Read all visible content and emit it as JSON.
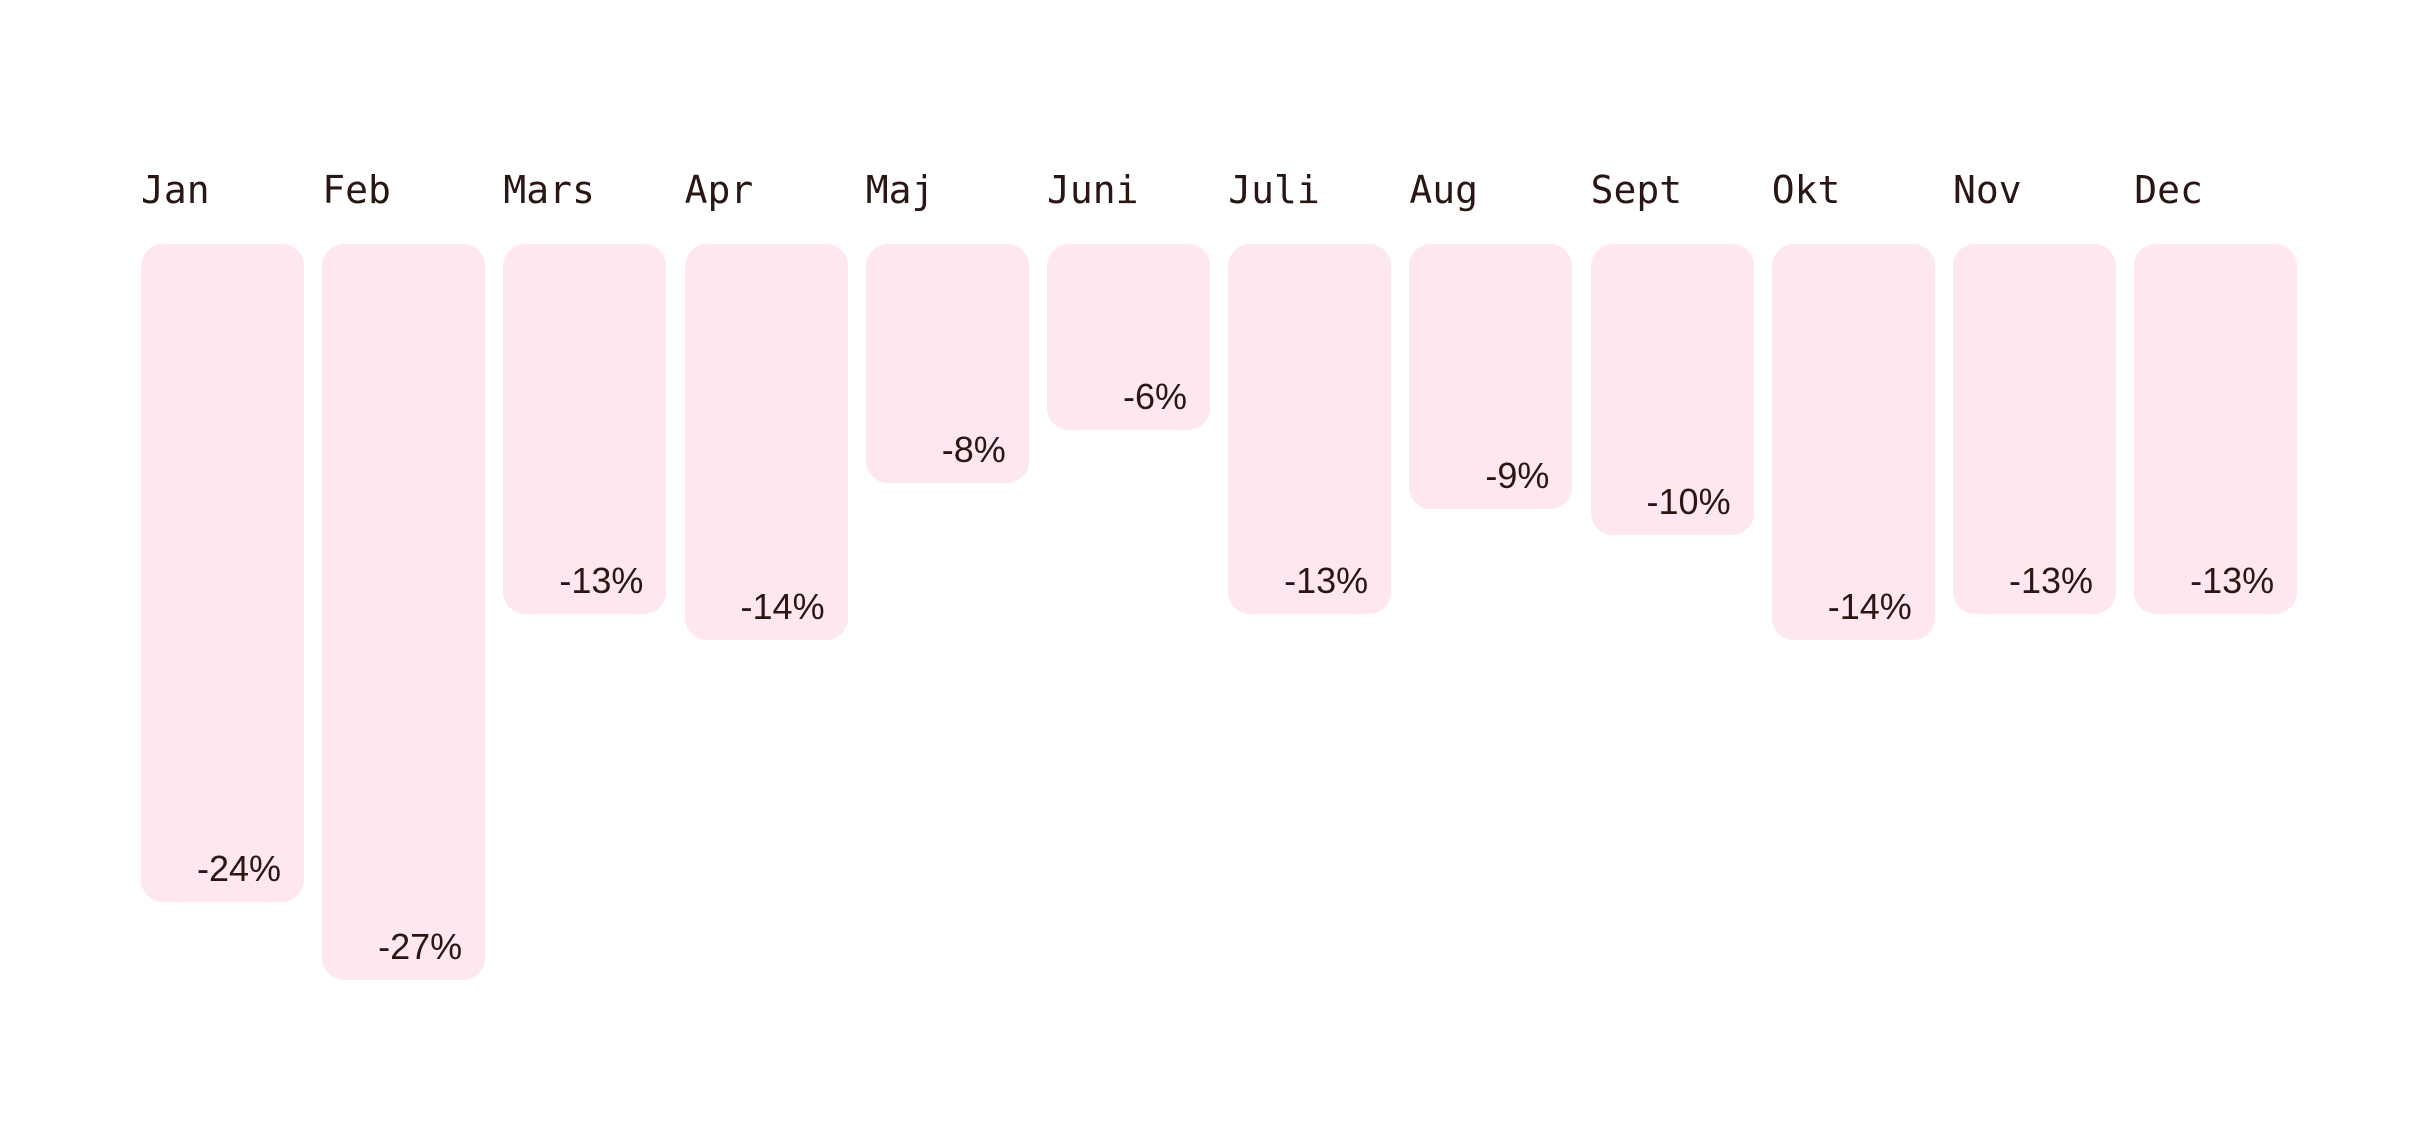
{
  "colors": {
    "bar_fill": "#fee7ee",
    "text": "#2a1714",
    "background": "#ffffff"
  },
  "chart_data": {
    "type": "bar",
    "orientation": "vertical-downward",
    "categories": [
      "Jan",
      "Feb",
      "Mars",
      "Apr",
      "Maj",
      "Juni",
      "Juli",
      "Aug",
      "Sept",
      "Okt",
      "Nov",
      "Dec"
    ],
    "values": [
      -24,
      -27,
      -13,
      -14,
      -8,
      -6,
      -13,
      -9,
      -10,
      -14,
      -13,
      -13
    ],
    "value_labels": [
      "-24%",
      "-27%",
      "-13%",
      "-14%",
      "-8%",
      "-6%",
      "-13%",
      "-9%",
      "-10%",
      "-14%",
      "-13%",
      "-13%"
    ],
    "unit": "%",
    "title": "",
    "xlabel": "",
    "ylabel": "",
    "ylim": [
      -27,
      0
    ],
    "grid": false,
    "legend": "none"
  }
}
